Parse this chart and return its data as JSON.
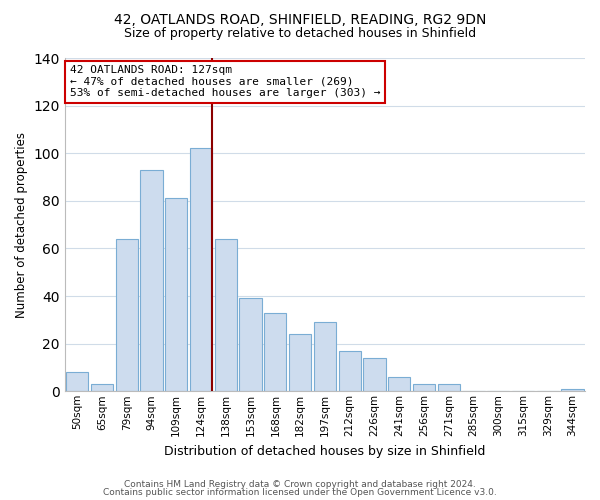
{
  "title1": "42, OATLANDS ROAD, SHINFIELD, READING, RG2 9DN",
  "title2": "Size of property relative to detached houses in Shinfield",
  "xlabel": "Distribution of detached houses by size in Shinfield",
  "ylabel": "Number of detached properties",
  "bar_labels": [
    "50sqm",
    "65sqm",
    "79sqm",
    "94sqm",
    "109sqm",
    "124sqm",
    "138sqm",
    "153sqm",
    "168sqm",
    "182sqm",
    "197sqm",
    "212sqm",
    "226sqm",
    "241sqm",
    "256sqm",
    "271sqm",
    "285sqm",
    "300sqm",
    "315sqm",
    "329sqm",
    "344sqm"
  ],
  "bar_values": [
    8,
    3,
    64,
    93,
    81,
    102,
    64,
    39,
    33,
    24,
    29,
    17,
    14,
    6,
    3,
    3,
    0,
    0,
    0,
    0,
    1
  ],
  "bar_color": "#cddcee",
  "bar_edgecolor": "#7aadd4",
  "highlight_bar_index": 5,
  "vline_bar_index": 5,
  "vline_color": "#8b0000",
  "annotation_title": "42 OATLANDS ROAD: 127sqm",
  "annotation_line1": "← 47% of detached houses are smaller (269)",
  "annotation_line2": "53% of semi-detached houses are larger (303) →",
  "annotation_box_color": "#ffffff",
  "annotation_box_edgecolor": "#cc0000",
  "ylim": [
    0,
    140
  ],
  "yticks": [
    0,
    20,
    40,
    60,
    80,
    100,
    120,
    140
  ],
  "footer1": "Contains HM Land Registry data © Crown copyright and database right 2024.",
  "footer2": "Contains public sector information licensed under the Open Government Licence v3.0.",
  "background_color": "#ffffff",
  "grid_color": "#d0dce8"
}
